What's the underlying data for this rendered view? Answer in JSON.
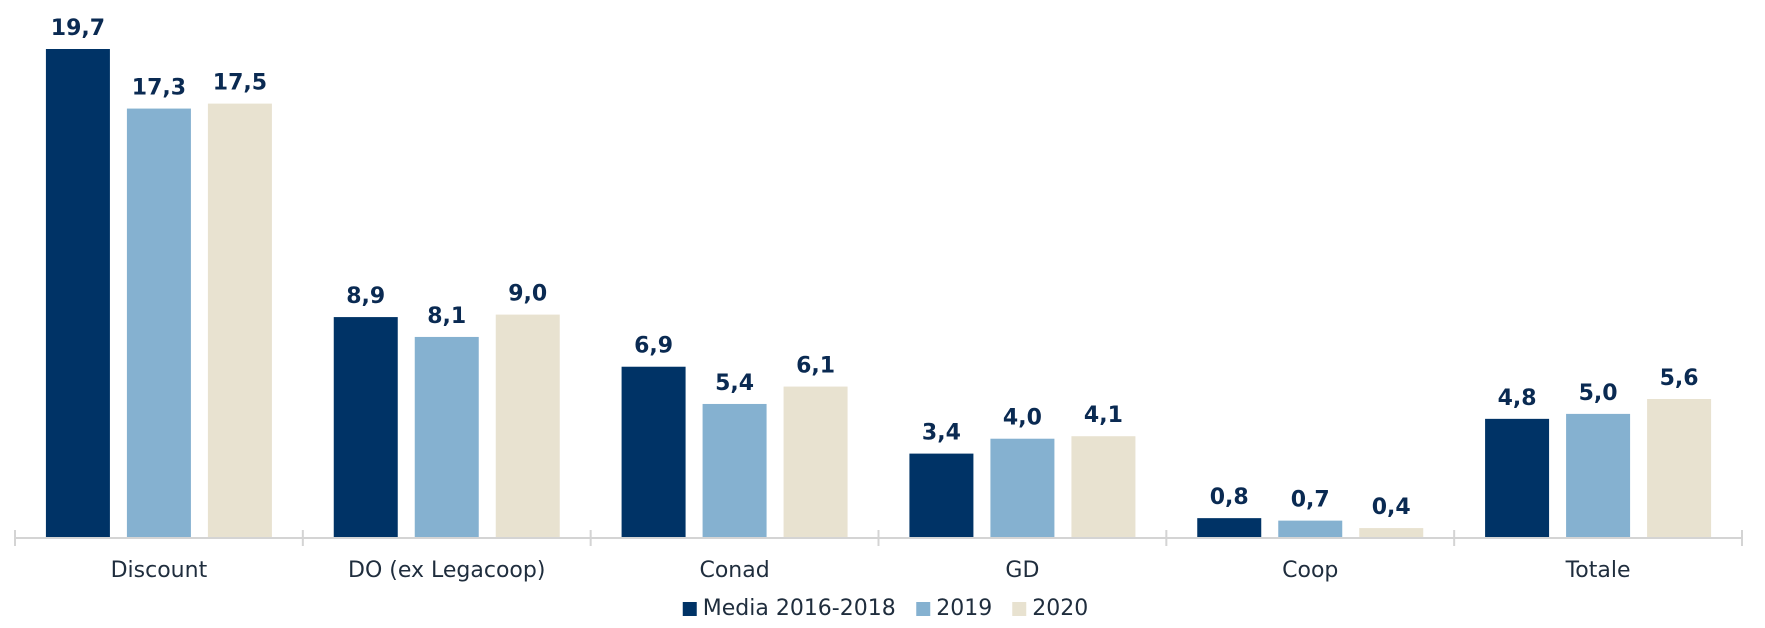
{
  "chart_data": {
    "type": "bar",
    "categories": [
      "Discount",
      "DO (ex Legacoop)",
      "Conad",
      "GD",
      "Coop",
      "Totale"
    ],
    "series": [
      {
        "name": "Media 2016-2018",
        "color": "#003366",
        "values": [
          19.7,
          8.9,
          6.9,
          3.4,
          0.8,
          4.8
        ],
        "labels": [
          "19,7",
          "8,9",
          "6,9",
          "3,4",
          "0,8",
          "4,8"
        ]
      },
      {
        "name": "2019",
        "color": "#85b1d0",
        "values": [
          17.3,
          8.1,
          5.4,
          4.0,
          0.7,
          5.0
        ],
        "labels": [
          "17,3",
          "8,1",
          "5,4",
          "4,0",
          "0,7",
          "5,0"
        ]
      },
      {
        "name": "2020",
        "color": "#e8e2d0",
        "values": [
          17.5,
          9.0,
          6.1,
          4.1,
          0.4,
          5.6
        ],
        "labels": [
          "17,5",
          "9,0",
          "6,1",
          "4,1",
          "0,4",
          "5,6"
        ]
      }
    ],
    "ylim": [
      0,
      20
    ],
    "grid": false,
    "legend": "bottom-center",
    "axis_color": "#d4d4d4"
  }
}
